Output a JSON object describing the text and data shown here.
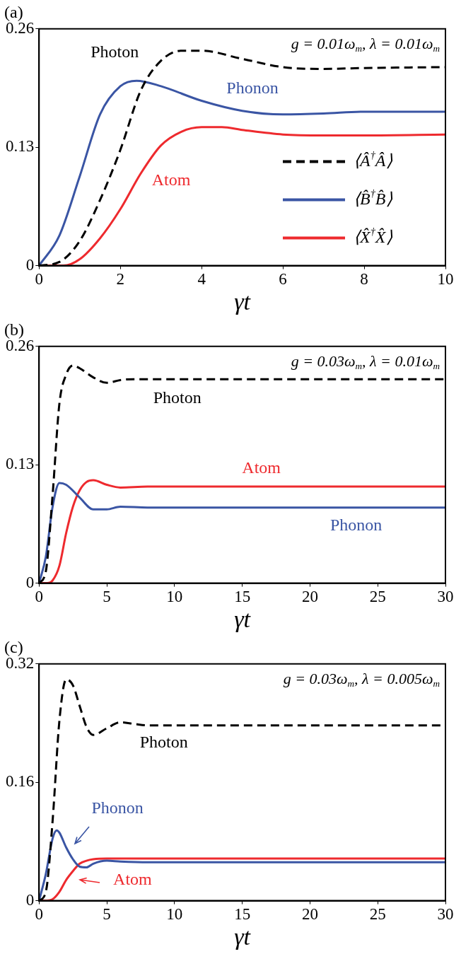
{
  "chart_data": [
    {
      "type": "line",
      "title": "(a)",
      "xlabel": "γt",
      "xlim": [
        0,
        10
      ],
      "xticks": [
        0,
        2,
        4,
        6,
        8,
        10
      ],
      "ylim": [
        0,
        0.26
      ],
      "yticks": [
        0,
        0.13,
        0.26
      ],
      "grid": false,
      "legend": "bottom right",
      "marker": "none",
      "annotations": [
        "g = 0.01ω$_{m}$, λ = 0.01ω$_{m}$",
        "Photon",
        "Phonon",
        "Atom"
      ],
      "series": [
        {
          "name": "⟨Â$^{†}$Â⟩",
          "color": "#000000",
          "line_style": "dashed",
          "x": [
            0,
            0.5,
            1,
            1.5,
            2,
            2.5,
            3,
            3.5,
            4,
            5,
            6,
            7,
            8,
            10
          ],
          "values": [
            0,
            0.004,
            0.027,
            0.072,
            0.127,
            0.192,
            0.225,
            0.236,
            0.236,
            0.227,
            0.218,
            0.216,
            0.217,
            0.218
          ]
        },
        {
          "name": "⟨B̂$^{†}$B̂⟩",
          "color": "#3a55a4",
          "line_style": "solid",
          "x": [
            0,
            0.5,
            1,
            1.5,
            2,
            2.4,
            3,
            4,
            5,
            6,
            7,
            8,
            10
          ],
          "values": [
            0,
            0.033,
            0.098,
            0.166,
            0.197,
            0.203,
            0.197,
            0.181,
            0.17,
            0.166,
            0.167,
            0.169,
            0.169
          ]
        },
        {
          "name": "⟨X̂$^{†}$X̂⟩",
          "color": "#ee2a2e",
          "line_style": "solid",
          "x": [
            0,
            0.6,
            1,
            1.5,
            2,
            2.5,
            3,
            3.5,
            4,
            4.5,
            5,
            6,
            7,
            8,
            10
          ],
          "values": [
            0,
            0,
            0.007,
            0.03,
            0.062,
            0.101,
            0.132,
            0.147,
            0.152,
            0.152,
            0.149,
            0.144,
            0.143,
            0.143,
            0.144
          ]
        }
      ]
    },
    {
      "type": "line",
      "title": "(b)",
      "xlabel": "γt",
      "xlim": [
        0,
        30
      ],
      "xticks": [
        0,
        5,
        10,
        15,
        20,
        25,
        30
      ],
      "ylim": [
        0,
        0.26
      ],
      "yticks": [
        0,
        0.13,
        0.26
      ],
      "grid": false,
      "marker": "none",
      "annotations": [
        "g = 0.03ω$_{m}$, λ = 0.01ω$_{m}$",
        "Photon",
        "Atom",
        "Phonon"
      ],
      "series": [
        {
          "color": "#000000",
          "line_style": "dashed",
          "x": [
            0,
            0.5,
            1,
            1.5,
            2,
            2.5,
            3,
            4,
            5,
            6,
            7,
            8,
            30
          ],
          "values": [
            0,
            0.013,
            0.097,
            0.197,
            0.229,
            0.239,
            0.236,
            0.226,
            0.22,
            0.223,
            0.224,
            0.224,
            0.224
          ]
        },
        {
          "color": "#3a55a4",
          "line_style": "solid",
          "x": [
            0,
            0.5,
            1,
            1.5,
            2,
            3,
            4,
            5,
            6,
            8,
            30
          ],
          "values": [
            0,
            0.029,
            0.084,
            0.11,
            0.108,
            0.094,
            0.081,
            0.081,
            0.084,
            0.083,
            0.083
          ]
        },
        {
          "color": "#ee2a2e",
          "line_style": "solid",
          "x": [
            0,
            0.6,
            1,
            1.5,
            2,
            2.5,
            3,
            3.5,
            4,
            5,
            6,
            8,
            30
          ],
          "values": [
            0,
            0,
            0.003,
            0.019,
            0.055,
            0.084,
            0.102,
            0.111,
            0.113,
            0.108,
            0.105,
            0.106,
            0.106
          ]
        }
      ]
    },
    {
      "type": "line",
      "title": "(c)",
      "xlabel": "γt",
      "xlim": [
        0,
        30
      ],
      "xticks": [
        0,
        5,
        10,
        15,
        20,
        25,
        30
      ],
      "ylim": [
        0,
        0.32
      ],
      "yticks": [
        0,
        0.16,
        0.32
      ],
      "grid": false,
      "marker": "none",
      "annotations": [
        "g = 0.03ω$_{m}$, λ = 0.005ω$_{m}$",
        "Photon",
        "Phonon",
        "Atom"
      ],
      "series": [
        {
          "color": "#000000",
          "line_style": "dashed",
          "x": [
            0,
            0.5,
            1,
            1.5,
            2,
            2.5,
            3,
            3.5,
            4,
            5,
            6,
            7,
            8,
            30
          ],
          "values": [
            0,
            0.012,
            0.108,
            0.243,
            0.299,
            0.291,
            0.263,
            0.235,
            0.224,
            0.233,
            0.241,
            0.239,
            0.237,
            0.237
          ]
        },
        {
          "color": "#3a55a4",
          "line_style": "solid",
          "x": [
            0,
            0.5,
            1,
            1.3,
            1.5,
            2,
            2.5,
            3,
            3.5,
            4,
            5,
            6,
            8,
            30
          ],
          "values": [
            0,
            0.036,
            0.084,
            0.095,
            0.092,
            0.072,
            0.056,
            0.046,
            0.045,
            0.05,
            0.054,
            0.053,
            0.052,
            0.052
          ]
        },
        {
          "color": "#ee2a2e",
          "line_style": "solid",
          "x": [
            0,
            0.6,
            1,
            1.5,
            2,
            2.5,
            3,
            3.5,
            4,
            5,
            8,
            30
          ],
          "values": [
            0,
            0,
            0.002,
            0.012,
            0.028,
            0.04,
            0.05,
            0.054,
            0.056,
            0.057,
            0.057,
            0.057
          ]
        }
      ]
    }
  ]
}
